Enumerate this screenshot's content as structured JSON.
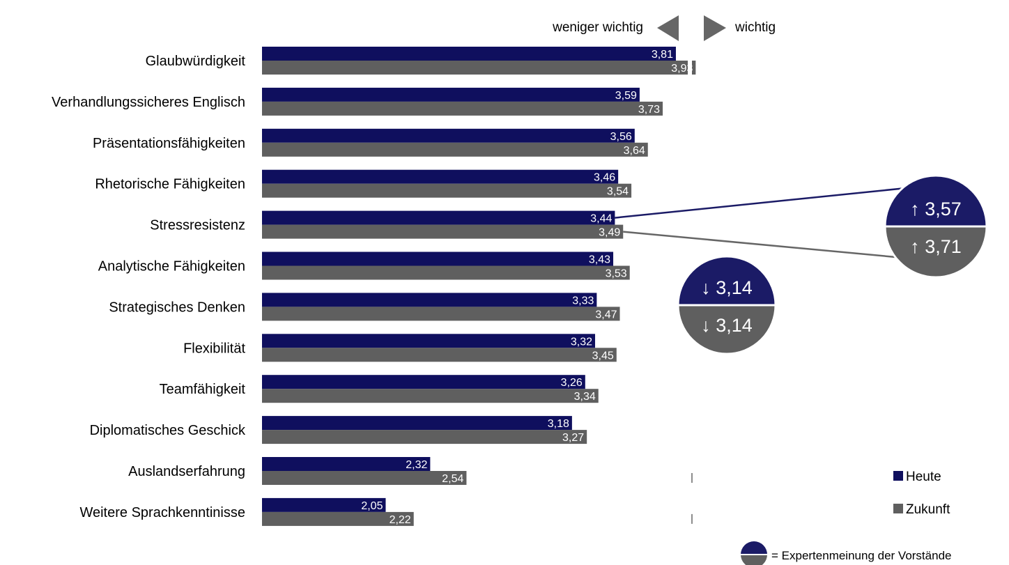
{
  "chart_data": {
    "type": "bar",
    "orientation": "horizontal",
    "header": {
      "left_label": "weniger wichtig",
      "right_label": "wichtig"
    },
    "categories": [
      "Glaubwürdigkeit",
      "Verhandlungssicheres Englisch",
      "Präsentationsfähigkeiten",
      "Rhetorische Fähigkeiten",
      "Stressresistenz",
      "Analytische Fähigkeiten",
      "Strategisches Denken",
      "Flexibilität",
      "Teamfähigkeit",
      "Diplomatisches Geschick",
      "Auslandserfahrung",
      "Weitere Sprachkenntinisse"
    ],
    "series": [
      {
        "name": "Heute",
        "color": "#0f0f5e",
        "values": [
          3.81,
          3.59,
          3.56,
          3.46,
          3.44,
          3.43,
          3.33,
          3.32,
          3.26,
          3.18,
          2.32,
          2.05
        ],
        "labels": [
          "3,81",
          "3,59",
          "3,56",
          "3,46",
          "3,44",
          "3,43",
          "3,33",
          "3,32",
          "3,26",
          "3,18",
          "2,32",
          "2,05"
        ]
      },
      {
        "name": "Zukunft",
        "color": "#5f5f5f",
        "values": [
          3.93,
          3.73,
          3.64,
          3.54,
          3.49,
          3.53,
          3.47,
          3.45,
          3.34,
          3.27,
          2.54,
          2.22
        ],
        "labels": [
          "3,93",
          "3,73",
          "3,64",
          "3,54",
          "3,49",
          "3,53",
          "3,47",
          "3,45",
          "3,34",
          "3,27",
          "2,54",
          "2,22"
        ]
      }
    ],
    "midpoint": 2.5,
    "xlim": [
      1.3,
      4.6
    ],
    "expert_callouts": [
      {
        "category": "Stressresistenz",
        "heute": "↑ 3,57",
        "zukunft": "↑ 3,71"
      },
      {
        "category": "Strategisches Denken",
        "heute": "↓ 3,14",
        "zukunft": "↓ 3,14"
      }
    ],
    "legend": {
      "position": "bottom-right",
      "items": [
        "Heute",
        "Zukunft"
      ]
    },
    "footnote": "= Expertenmeinung der Vorstände"
  }
}
